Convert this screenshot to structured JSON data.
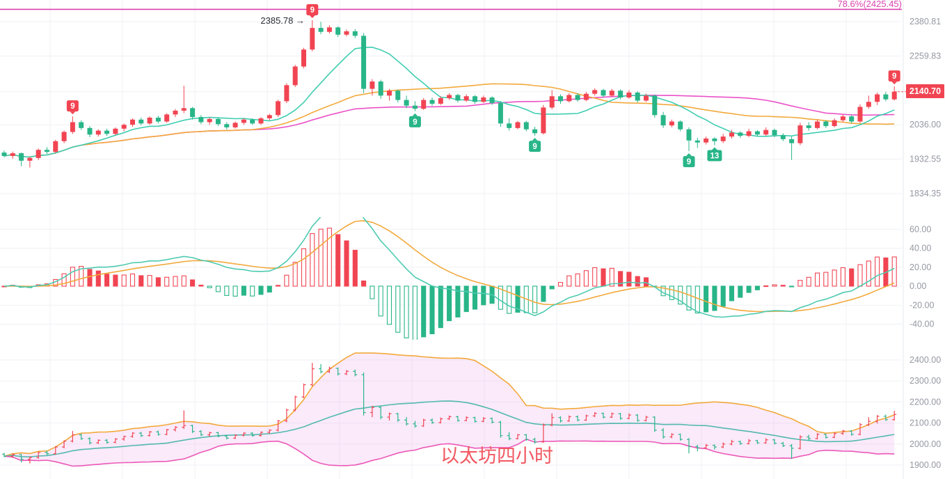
{
  "chart": {
    "fib_label": "78.6%(2425.45)",
    "fib_value": 2425.45,
    "peak_annotation": "2385.78 →",
    "last_price": "2140.70",
    "symbol_note": "以太坊四小时",
    "price_axis_ticks": [
      {
        "label": "2380.81",
        "value": 2380.81
      },
      {
        "label": "2259.83",
        "value": 2259.83
      },
      {
        "label": "2140.70",
        "value": 2140.7,
        "highlight": true
      },
      {
        "label": "2036.00",
        "value": 2036.0
      },
      {
        "label": "1932.55",
        "value": 1932.55
      },
      {
        "label": "1834.35",
        "value": 1834.35
      }
    ],
    "macd_axis_ticks": [
      {
        "label": "60.00",
        "value": 60
      },
      {
        "label": "40.00",
        "value": 40
      },
      {
        "label": "20.00",
        "value": 20
      },
      {
        "label": "0.00",
        "value": 0
      },
      {
        "label": "-20.00",
        "value": -20
      },
      {
        "label": "-40.00",
        "value": -40
      }
    ],
    "boll_axis_ticks": [
      {
        "label": "2400.00",
        "value": 2400
      },
      {
        "label": "2300.00",
        "value": 2300
      },
      {
        "label": "2200.00",
        "value": 2200
      },
      {
        "label": "2100.00",
        "value": 2100
      },
      {
        "label": "2000.00",
        "value": 2000
      },
      {
        "label": "1900.00",
        "value": 1900
      }
    ],
    "colors": {
      "up": "#f14452",
      "down": "#28b588",
      "ma_fast": "#3fcdb1",
      "ma_mid": "#f2a93c",
      "ma_slow": "#ea52c8",
      "fib": "#d943ae",
      "macd_dif": "#4ecab0",
      "macd_dea": "#f2a93c",
      "boll_up": "#f2a93c",
      "boll_mid": "#53b9ae",
      "boll_low": "#ec58b8",
      "boll_fill": "#ecb3ec",
      "grid": "#f0f1f4",
      "axis_text": "#9598a3",
      "last_price_bg": "#f14452",
      "note_text": "#f25862"
    }
  },
  "chart_data": {
    "type": "candlestick",
    "title": "以太坊四小时 (Ethereum 4-hour)",
    "panels": [
      "price + MA(10/30/55) + fib 78.6%(2425.45)",
      "MACD(12,26,9)",
      "BOLL(20,2) with HLC bars"
    ],
    "price_axis_range": [
      1834.35,
      2380.81
    ],
    "macd_axis_range": [
      -40,
      60
    ],
    "boll_axis_range": [
      1900,
      2400
    ],
    "indicators": {
      "ma_periods": [
        10,
        30,
        55
      ],
      "macd_params": [
        12,
        26,
        9
      ],
      "boll_params": [
        20,
        2
      ]
    },
    "peak_price": 2385.78,
    "last_close": 2140.7,
    "candles": [
      [
        1952,
        1958,
        1938,
        1942
      ],
      [
        1942,
        1955,
        1934,
        1950
      ],
      [
        1950,
        1952,
        1912,
        1928
      ],
      [
        1928,
        1940,
        1908,
        1936
      ],
      [
        1936,
        1964,
        1930,
        1960
      ],
      [
        1960,
        1968,
        1948,
        1954
      ],
      [
        1954,
        1990,
        1950,
        1986
      ],
      [
        1986,
        2018,
        1980,
        2014
      ],
      [
        2014,
        2062,
        2008,
        2044
      ],
      [
        2044,
        2050,
        2020,
        2026
      ],
      [
        2026,
        2032,
        1998,
        2006
      ],
      [
        2006,
        2022,
        2000,
        2018
      ],
      [
        2018,
        2024,
        2002,
        2008
      ],
      [
        2008,
        2028,
        2004,
        2024
      ],
      [
        2024,
        2040,
        2016,
        2036
      ],
      [
        2036,
        2056,
        2030,
        2052
      ],
      [
        2052,
        2058,
        2034,
        2040
      ],
      [
        2040,
        2062,
        2036,
        2058
      ],
      [
        2058,
        2064,
        2040,
        2046
      ],
      [
        2046,
        2072,
        2042,
        2068
      ],
      [
        2068,
        2085,
        2060,
        2080
      ],
      [
        2080,
        2160,
        2072,
        2088
      ],
      [
        2088,
        2092,
        2052,
        2060
      ],
      [
        2060,
        2066,
        2038,
        2044
      ],
      [
        2044,
        2058,
        2036,
        2054
      ],
      [
        2054,
        2058,
        2032,
        2038
      ],
      [
        2038,
        2044,
        2022,
        2028
      ],
      [
        2028,
        2046,
        2024,
        2042
      ],
      [
        2042,
        2056,
        2036,
        2052
      ],
      [
        2052,
        2056,
        2036,
        2040
      ],
      [
        2040,
        2060,
        2036,
        2056
      ],
      [
        2056,
        2070,
        2050,
        2066
      ],
      [
        2066,
        2115,
        2060,
        2110
      ],
      [
        2110,
        2168,
        2104,
        2162
      ],
      [
        2162,
        2230,
        2156,
        2224
      ],
      [
        2224,
        2288,
        2218,
        2282
      ],
      [
        2282,
        2385.78,
        2276,
        2358
      ],
      [
        2358,
        2380,
        2336,
        2344
      ],
      [
        2344,
        2368,
        2338,
        2360
      ],
      [
        2360,
        2364,
        2326,
        2334
      ],
      [
        2334,
        2352,
        2328,
        2346
      ],
      [
        2346,
        2354,
        2322,
        2330
      ],
      [
        2330,
        2340,
        2136,
        2150
      ],
      [
        2150,
        2182,
        2128,
        2174
      ],
      [
        2174,
        2180,
        2118,
        2128
      ],
      [
        2128,
        2150,
        2112,
        2144
      ],
      [
        2144,
        2148,
        2106,
        2114
      ],
      [
        2114,
        2128,
        2088,
        2096
      ],
      [
        2096,
        2110,
        2078,
        2086
      ],
      [
        2086,
        2120,
        2082,
        2114
      ],
      [
        2114,
        2122,
        2096,
        2102
      ],
      [
        2102,
        2126,
        2098,
        2120
      ],
      [
        2120,
        2136,
        2114,
        2130
      ],
      [
        2130,
        2134,
        2106,
        2112
      ],
      [
        2112,
        2132,
        2108,
        2126
      ],
      [
        2126,
        2130,
        2102,
        2108
      ],
      [
        2108,
        2128,
        2104,
        2122
      ],
      [
        2122,
        2126,
        2098,
        2104
      ],
      [
        2104,
        2110,
        2030,
        2040
      ],
      [
        2040,
        2056,
        2018,
        2026
      ],
      [
        2026,
        2048,
        2022,
        2044
      ],
      [
        2044,
        2048,
        2016,
        2022
      ],
      [
        2022,
        2030,
        2002,
        2010
      ],
      [
        2010,
        2098,
        2006,
        2090
      ],
      [
        2090,
        2146,
        2084,
        2126
      ],
      [
        2126,
        2132,
        2102,
        2110
      ],
      [
        2110,
        2136,
        2106,
        2130
      ],
      [
        2130,
        2136,
        2108,
        2114
      ],
      [
        2114,
        2140,
        2110,
        2134
      ],
      [
        2134,
        2152,
        2128,
        2146
      ],
      [
        2146,
        2150,
        2122,
        2128
      ],
      [
        2128,
        2150,
        2124,
        2144
      ],
      [
        2144,
        2148,
        2116,
        2122
      ],
      [
        2122,
        2146,
        2118,
        2138
      ],
      [
        2138,
        2142,
        2106,
        2112
      ],
      [
        2112,
        2134,
        2108,
        2128
      ],
      [
        2128,
        2132,
        2058,
        2066
      ],
      [
        2066,
        2076,
        2026,
        2034
      ],
      [
        2034,
        2052,
        2028,
        2046
      ],
      [
        2046,
        2050,
        2016,
        2022
      ],
      [
        2022,
        2028,
        1956,
        1988
      ],
      [
        1988,
        1996,
        1966,
        1982
      ],
      [
        1982,
        2000,
        1976,
        1994
      ],
      [
        1994,
        1998,
        1974,
        1986
      ],
      [
        1986,
        2008,
        1980,
        2000
      ],
      [
        2000,
        2020,
        1994,
        2012
      ],
      [
        2012,
        2016,
        1996,
        2002
      ],
      [
        2002,
        2024,
        1998,
        2016
      ],
      [
        2016,
        2020,
        2000,
        2006
      ],
      [
        2006,
        2028,
        2002,
        2020
      ],
      [
        2020,
        2024,
        1998,
        2004
      ],
      [
        2004,
        2010,
        1986,
        1992
      ],
      [
        1992,
        2000,
        1930,
        1980
      ],
      [
        1980,
        2042,
        1974,
        2034
      ],
      [
        2034,
        2044,
        2018,
        2026
      ],
      [
        2026,
        2052,
        2022,
        2046
      ],
      [
        2046,
        2050,
        2026,
        2032
      ],
      [
        2032,
        2056,
        2028,
        2050
      ],
      [
        2050,
        2068,
        2044,
        2062
      ],
      [
        2062,
        2066,
        2040,
        2046
      ],
      [
        2046,
        2100,
        2042,
        2092
      ],
      [
        2092,
        2128,
        2086,
        2108
      ],
      [
        2108,
        2138,
        2098,
        2132
      ],
      [
        2132,
        2140,
        2110,
        2116
      ],
      [
        2116,
        2158,
        2112,
        2140.7
      ]
    ],
    "markers": [
      {
        "index": 8,
        "side": "sell",
        "label": "9"
      },
      {
        "index": 36,
        "side": "sell",
        "label": "9",
        "annotation": "2385.78 →"
      },
      {
        "index": 48,
        "side": "buy",
        "label": "9"
      },
      {
        "index": 62,
        "side": "buy",
        "label": "9"
      },
      {
        "index": 80,
        "side": "buy",
        "label": "9"
      },
      {
        "index": 83,
        "side": "buy",
        "label": "13"
      },
      {
        "index": 104,
        "side": "sell",
        "label": "9"
      }
    ]
  }
}
